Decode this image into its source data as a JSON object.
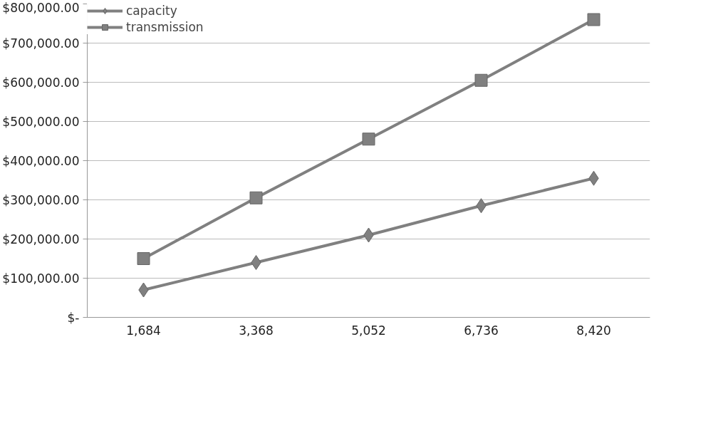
{
  "chart_data": {
    "type": "line",
    "categories": [
      "1,684",
      "3,368",
      "5,052",
      "6,736",
      "8,420"
    ],
    "series": [
      {
        "name": "capacity",
        "color": "#808080",
        "marker": "diamond",
        "values": [
          70000,
          140000,
          210000,
          285000,
          355000
        ]
      },
      {
        "name": "transmission",
        "color": "#808080",
        "marker": "square",
        "values": [
          150000,
          305000,
          455000,
          605000,
          760000
        ]
      }
    ],
    "ylim": [
      0,
      800000
    ],
    "yticks": [
      {
        "value": 0,
        "label": "$-"
      },
      {
        "value": 100000,
        "label": "$100,000.00"
      },
      {
        "value": 200000,
        "label": "$200,000.00"
      },
      {
        "value": 300000,
        "label": "$300,000.00"
      },
      {
        "value": 400000,
        "label": "$400,000.00"
      },
      {
        "value": 500000,
        "label": "$500,000.00"
      },
      {
        "value": 600000,
        "label": "$600,000.00"
      },
      {
        "value": 700000,
        "label": "$700,000.00"
      },
      {
        "value": 800000,
        "label": "$800,000.00"
      }
    ],
    "grid": "y",
    "legend": "top left",
    "line_style": "solid"
  }
}
